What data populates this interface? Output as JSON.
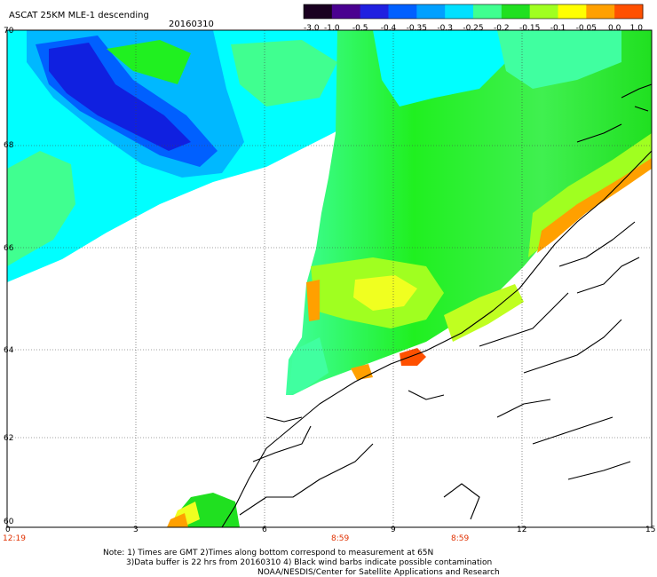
{
  "title": {
    "product": "ASCAT 25KM MLE-1 descending",
    "date": "20160310"
  },
  "colorbar": {
    "labels": [
      "-3.0",
      "-1.0",
      "-0.5",
      "-0.4",
      "-0.35",
      "-0.3",
      "-0.25",
      "-0.2",
      "-0.15",
      "-0.1",
      "-0.05",
      "0.0",
      "1.0"
    ],
    "colors": [
      "#1a0020",
      "#4a0090",
      "#2020e0",
      "#0060ff",
      "#00a0ff",
      "#00e0ff",
      "#40ff90",
      "#20e020",
      "#a0ff20",
      "#ffff00",
      "#ffa000",
      "#ff5000"
    ]
  },
  "axes": {
    "lat_labels": [
      "70",
      "68",
      "66",
      "64",
      "62",
      "60"
    ],
    "lon_labels": [
      "0",
      "3",
      "6",
      "9",
      "12",
      "15"
    ]
  },
  "times": [
    "12:19",
    "8:59",
    "8:59"
  ],
  "notes": {
    "line1": "Note: 1) Times are GMT  2)Times along bottom correspond to measurement at 65N",
    "line2": "3)Data buffer is 22 hrs from 20160310  4) Black wind barbs indicate possible contamination",
    "line3": "NOAA/NESDIS/Center for Satellite Applications and Research"
  },
  "legend_colors": {
    "deep_blue": "#1020e0",
    "blue": "#0050ff",
    "sky": "#00a8ff",
    "cyan": "#00ffff",
    "aqua_green": "#40ffa0",
    "green": "#20f020",
    "lime": "#a0ff20",
    "yellow": "#f0ff20",
    "orange": "#ffa000",
    "red_orange": "#ff5000"
  }
}
